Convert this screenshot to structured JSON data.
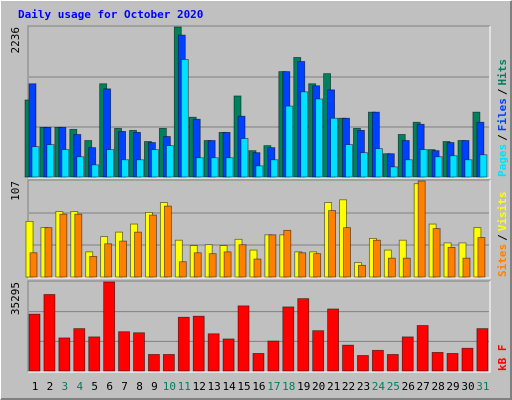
{
  "chart_data": [
    {
      "type": "bar",
      "title": "Daily usage for October 2020",
      "title_color": "#0000ff",
      "ylim": [
        0,
        2236
      ],
      "yticks": [
        2236
      ],
      "legend_separator": "/",
      "series": [
        {
          "name": "Hits",
          "color": "#00805c",
          "values": [
            1148,
            740,
            740,
            710,
            544,
            1390,
            725,
            695,
            529,
            725,
            2236,
            891,
            544,
            665,
            1208,
            393,
            468,
            1571,
            1782,
            1390,
            1541,
            876,
            725,
            967,
            347,
            634,
            816,
            408,
            529,
            544,
            967
          ]
        },
        {
          "name": "Files",
          "color": "#0040ff",
          "values": [
            1390,
            740,
            740,
            634,
            438,
            1314,
            680,
            665,
            514,
            604,
            2115,
            861,
            544,
            665,
            906,
            363,
            438,
            1571,
            1722,
            1360,
            1299,
            876,
            695,
            967,
            347,
            544,
            786,
            393,
            514,
            544,
            816
          ]
        },
        {
          "name": "Pages",
          "color": "#00e0ff",
          "values": [
            453,
            483,
            408,
            302,
            181,
            408,
            257,
            257,
            408,
            468,
            1752,
            287,
            287,
            287,
            574,
            166,
            257,
            1057,
            1269,
            1163,
            876,
            483,
            363,
            423,
            151,
            257,
            408,
            302,
            317,
            257,
            332
          ]
        }
      ]
    },
    {
      "type": "bar",
      "ylim": [
        0,
        107
      ],
      "yticks": [
        107
      ],
      "legend_separator": "/",
      "series": [
        {
          "name": "Visits",
          "color": "#ffff00",
          "values": [
            62,
            55,
            73,
            73,
            28,
            45,
            50,
            59,
            72,
            83,
            41,
            35,
            36,
            35,
            42,
            30,
            47,
            47,
            28,
            28,
            83,
            86,
            16,
            43,
            30,
            41,
            104,
            59,
            38,
            38,
            55
          ]
        },
        {
          "name": "Sites",
          "color": "#ff8000",
          "values": [
            27,
            55,
            70,
            70,
            23,
            37,
            40,
            50,
            69,
            79,
            17,
            27,
            26,
            28,
            36,
            20,
            47,
            52,
            27,
            26,
            74,
            55,
            13,
            41,
            21,
            21,
            107,
            54,
            33,
            21,
            44
          ]
        }
      ]
    },
    {
      "type": "bar",
      "ylim": [
        0,
        35295
      ],
      "yticks": [
        35295
      ],
      "categories": [
        "1",
        "2",
        "3",
        "4",
        "5",
        "6",
        "7",
        "8",
        "9",
        "10",
        "11",
        "12",
        "13",
        "14",
        "15",
        "16",
        "17",
        "18",
        "19",
        "20",
        "21",
        "22",
        "23",
        "24",
        "25",
        "26",
        "27",
        "28",
        "29",
        "30",
        "31"
      ],
      "label_colors": [
        "#000000",
        "#000000",
        "#00805c",
        "#00805c",
        "#000000",
        "#000000",
        "#000000",
        "#000000",
        "#000000",
        "#00805c",
        "#00805c",
        "#000000",
        "#000000",
        "#000000",
        "#000000",
        "#000000",
        "#00805c",
        "#00805c",
        "#000000",
        "#000000",
        "#000000",
        "#000000",
        "#000000",
        "#00805c",
        "#00805c",
        "#000000",
        "#000000",
        "#000000",
        "#000000",
        "#000000",
        "#00805c"
      ],
      "series": [
        {
          "name": "kB F",
          "color": "#ff0000",
          "values": [
            22550,
            30340,
            13120,
            16810,
            13530,
            35295,
            15580,
            15170,
            6560,
            6560,
            21320,
            21730,
            14760,
            12710,
            25830,
            6970,
            11890,
            25420,
            28700,
            15990,
            24600,
            10250,
            6150,
            8200,
            6560,
            13530,
            18040,
            7380,
            6970,
            9020,
            16810
          ]
        }
      ]
    }
  ]
}
